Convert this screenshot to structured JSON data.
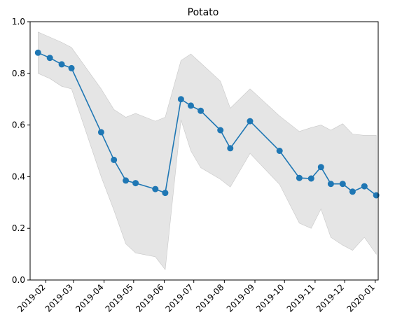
{
  "chart_data": {
    "type": "line",
    "title": "Potato",
    "xlabel": "",
    "ylabel": "",
    "ylim": [
      0.0,
      1.0
    ],
    "xlim": [
      "2019-01-16",
      "2020-01-04"
    ],
    "y_ticks": [
      "0.0",
      "0.2",
      "0.4",
      "0.6",
      "0.8",
      "1.0"
    ],
    "x_ticks": [
      "2019-02",
      "2019-03",
      "2019-04",
      "2019-05",
      "2019-06",
      "2019-07",
      "2019-08",
      "2019-09",
      "2019-10",
      "2019-11",
      "2019-12",
      "2020-01"
    ],
    "grid": false,
    "colors": {
      "line": "#1f77b4",
      "band": "#d3d3d3",
      "band_edge": "#c8c8c8"
    },
    "series": [
      {
        "x": [
          "2019-01-24",
          "2019-02-05",
          "2019-02-17",
          "2019-02-27",
          "2019-03-29",
          "2019-04-11",
          "2019-04-23",
          "2019-05-03",
          "2019-05-23",
          "2019-06-02",
          "2019-06-18",
          "2019-06-28",
          "2019-07-08",
          "2019-07-28",
          "2019-08-07",
          "2019-08-27",
          "2019-09-26",
          "2019-10-16",
          "2019-10-28",
          "2019-11-07",
          "2019-11-17",
          "2019-11-29",
          "2019-12-09",
          "2019-12-21",
          "2020-01-02"
        ],
        "values": [
          0.88,
          0.86,
          0.835,
          0.82,
          0.572,
          0.465,
          0.385,
          0.375,
          0.352,
          0.337,
          0.7,
          0.675,
          0.655,
          0.58,
          0.51,
          0.615,
          0.5,
          0.395,
          0.393,
          0.437,
          0.372,
          0.372,
          0.342,
          0.363,
          0.328
        ],
        "lower": [
          0.8,
          0.78,
          0.75,
          0.74,
          0.4,
          0.27,
          0.14,
          0.105,
          0.09,
          0.04,
          0.62,
          0.5,
          0.435,
          0.39,
          0.36,
          0.49,
          0.37,
          0.22,
          0.2,
          0.275,
          0.165,
          0.135,
          0.115,
          0.165,
          0.1
        ],
        "upper": [
          0.96,
          0.94,
          0.92,
          0.9,
          0.74,
          0.66,
          0.63,
          0.645,
          0.615,
          0.63,
          0.85,
          0.875,
          0.84,
          0.77,
          0.665,
          0.74,
          0.635,
          0.575,
          0.59,
          0.6,
          0.58,
          0.605,
          0.565,
          0.56,
          0.56
        ]
      }
    ]
  }
}
